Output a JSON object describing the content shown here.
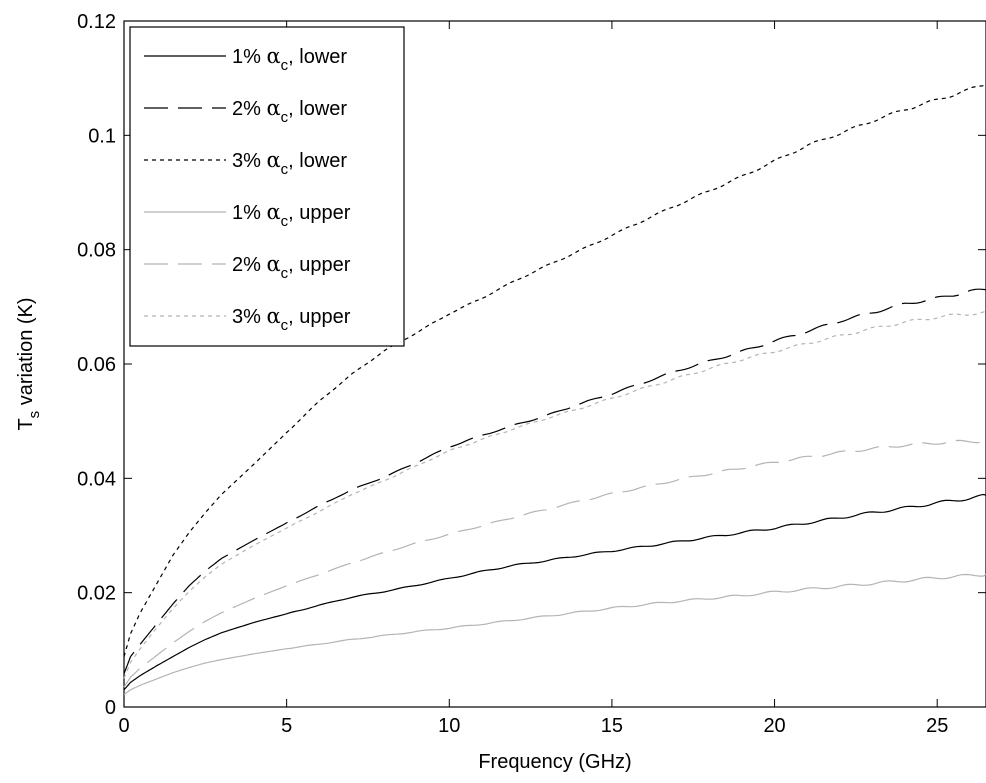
{
  "chart_data": {
    "type": "line",
    "xlabel": "Frequency (GHz)",
    "ylabel_main": "T",
    "ylabel_sub": "s",
    "ylabel_rest": " variation (K)",
    "xlim": [
      0,
      26.5
    ],
    "ylim": [
      0,
      0.12
    ],
    "xticks": [
      0,
      5,
      10,
      15,
      20,
      25
    ],
    "yticks": [
      0,
      0.02,
      0.04,
      0.06,
      0.08,
      0.1,
      0.12
    ],
    "grid": false,
    "legend_position": "top-left",
    "x": [
      0,
      0.2,
      0.5,
      1,
      1.5,
      2,
      2.5,
      3,
      4,
      5,
      6,
      7,
      8,
      9,
      10,
      11,
      12,
      13,
      14,
      15,
      16,
      17,
      18,
      19,
      20,
      21,
      22,
      23,
      24,
      25,
      26,
      26.5
    ],
    "series": [
      {
        "name": "1% α_c, lower",
        "label_prefix": "1% ",
        "label_symbol": "α",
        "label_sub": "c",
        "label_suffix": ", lower",
        "color": "#000000",
        "dash": "",
        "values": [
          0.003,
          0.0043,
          0.0055,
          0.0072,
          0.0088,
          0.0104,
          0.0118,
          0.013,
          0.0148,
          0.0163,
          0.0178,
          0.0192,
          0.0202,
          0.0213,
          0.0225,
          0.0237,
          0.0248,
          0.0256,
          0.0265,
          0.0273,
          0.0281,
          0.0289,
          0.0297,
          0.0305,
          0.0313,
          0.0322,
          0.0331,
          0.034,
          0.0348,
          0.0357,
          0.0365,
          0.037
        ]
      },
      {
        "name": "2% α_c, lower",
        "label_prefix": "2% ",
        "label_symbol": "α",
        "label_sub": "c",
        "label_suffix": ", lower",
        "color": "#000000",
        "dash": "24,10",
        "values": [
          0.0058,
          0.0088,
          0.011,
          0.0145,
          0.018,
          0.0212,
          0.0238,
          0.026,
          0.0292,
          0.0322,
          0.0352,
          0.038,
          0.0402,
          0.0428,
          0.0455,
          0.0475,
          0.0493,
          0.051,
          0.053,
          0.0548,
          0.0568,
          0.0588,
          0.0605,
          0.0622,
          0.064,
          0.0657,
          0.0675,
          0.069,
          0.0705,
          0.0715,
          0.0727,
          0.073
        ]
      },
      {
        "name": "3% α_c, lower",
        "label_prefix": "3% ",
        "label_symbol": "α",
        "label_sub": "c",
        "label_suffix": ", lower",
        "color": "#000000",
        "dash": "4,4",
        "values": [
          0.0088,
          0.0128,
          0.0165,
          0.0215,
          0.0265,
          0.0305,
          0.034,
          0.0372,
          0.0425,
          0.048,
          0.0535,
          0.0582,
          0.0623,
          0.0655,
          0.0688,
          0.0715,
          0.0745,
          0.0772,
          0.0798,
          0.0825,
          0.0852,
          0.0878,
          0.0903,
          0.0928,
          0.0955,
          0.0982,
          0.1003,
          0.1025,
          0.1045,
          0.1062,
          0.108,
          0.109
        ]
      },
      {
        "name": "1% α_c, upper",
        "label_prefix": "1% ",
        "label_symbol": "α",
        "label_sub": "c",
        "label_suffix": ", upper",
        "color": "#b4b4b4",
        "dash": "",
        "values": [
          0.0022,
          0.003,
          0.0038,
          0.0049,
          0.006,
          0.0069,
          0.0077,
          0.0083,
          0.0093,
          0.0102,
          0.011,
          0.0118,
          0.0125,
          0.0132,
          0.0138,
          0.0145,
          0.0152,
          0.0159,
          0.0166,
          0.0173,
          0.0179,
          0.0185,
          0.019,
          0.0195,
          0.0201,
          0.0206,
          0.0211,
          0.0216,
          0.0221,
          0.0226,
          0.023,
          0.0232
        ]
      },
      {
        "name": "2% α_c, upper",
        "label_prefix": "2% ",
        "label_symbol": "α",
        "label_sub": "c",
        "label_suffix": ", upper",
        "color": "#b4b4b4",
        "dash": "24,10",
        "values": [
          0.0035,
          0.0052,
          0.0068,
          0.009,
          0.0112,
          0.0132,
          0.015,
          0.0165,
          0.019,
          0.0212,
          0.0232,
          0.0252,
          0.027,
          0.0287,
          0.0302,
          0.0317,
          0.0332,
          0.0346,
          0.036,
          0.0373,
          0.0385,
          0.0397,
          0.0408,
          0.0418,
          0.0428,
          0.0437,
          0.0445,
          0.0452,
          0.0458,
          0.0462,
          0.0465,
          0.0465
        ]
      },
      {
        "name": "3% α_c, upper",
        "label_prefix": "3% ",
        "label_symbol": "α",
        "label_sub": "c",
        "label_suffix": ", upper",
        "color": "#b4b4b4",
        "dash": "4,4",
        "values": [
          0.005,
          0.0078,
          0.0102,
          0.0138,
          0.0172,
          0.0202,
          0.0228,
          0.025,
          0.0283,
          0.0313,
          0.0342,
          0.0372,
          0.0396,
          0.0422,
          0.0448,
          0.0468,
          0.0487,
          0.0505,
          0.0522,
          0.054,
          0.0558,
          0.0575,
          0.0592,
          0.0608,
          0.0622,
          0.0636,
          0.0649,
          0.0662,
          0.0673,
          0.0682,
          0.0688,
          0.069
        ]
      }
    ]
  }
}
